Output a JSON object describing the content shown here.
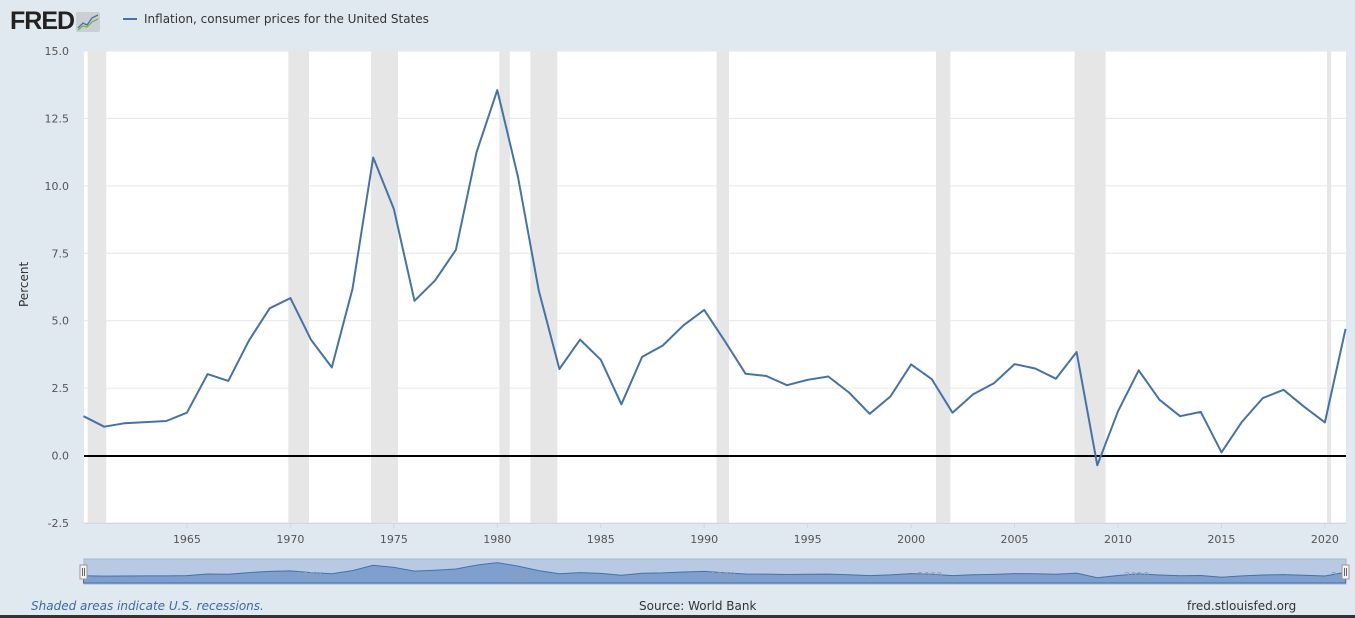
{
  "header": {
    "logo_text": "FRED",
    "legend_label": "Inflation, consumer prices for the United States"
  },
  "colors": {
    "series_line": "#4572a7",
    "recession_band": "#e6e6e6",
    "background": "#e1e9f0",
    "plot_background": "#ffffff",
    "navigator_fill": "#7f9fcf",
    "navigator_mask": "#b7c9e3",
    "footer_link": "#3a6aa3"
  },
  "footer": {
    "note": "Shaded areas indicate U.S. recessions.",
    "source": "Source: World Bank",
    "url": "fred.stlouisfed.org"
  },
  "navigator": {
    "labels": [
      "1970",
      "1980",
      "1990",
      "2000",
      "2010",
      "2..."
    ]
  },
  "chart_data": {
    "type": "line",
    "title": "Inflation, consumer prices for the United States",
    "xlabel": "",
    "ylabel": "Percent",
    "ylim": [
      -2.5,
      15.0
    ],
    "xlim": [
      1960,
      2021
    ],
    "y_ticks": [
      "15.0",
      "12.5",
      "10.0",
      "7.5",
      "5.0",
      "2.5",
      "0.0",
      "-2.5"
    ],
    "x_ticks": [
      "1965",
      "1970",
      "1975",
      "1980",
      "1985",
      "1990",
      "1995",
      "2000",
      "2005",
      "2010",
      "2015",
      "2020"
    ],
    "grid": true,
    "legend_position": "top-left",
    "recessions": [
      [
        1960.2,
        1961.1
      ],
      [
        1969.9,
        1970.9
      ],
      [
        1973.9,
        1975.2
      ],
      [
        1980.1,
        1980.6
      ],
      [
        1981.6,
        1982.9
      ],
      [
        1990.6,
        1991.2
      ],
      [
        2001.2,
        2001.9
      ],
      [
        2007.9,
        2009.4
      ],
      [
        2020.1,
        2020.3
      ]
    ],
    "series": [
      {
        "name": "Inflation, consumer prices for the United States",
        "x": [
          1960,
          1961,
          1962,
          1963,
          1964,
          1965,
          1966,
          1967,
          1968,
          1969,
          1970,
          1971,
          1972,
          1973,
          1974,
          1975,
          1976,
          1977,
          1978,
          1979,
          1980,
          1981,
          1982,
          1983,
          1984,
          1985,
          1986,
          1987,
          1988,
          1989,
          1990,
          1991,
          1992,
          1993,
          1994,
          1995,
          1996,
          1997,
          1998,
          1999,
          2000,
          2001,
          2002,
          2003,
          2004,
          2005,
          2006,
          2007,
          2008,
          2009,
          2010,
          2011,
          2012,
          2013,
          2014,
          2015,
          2016,
          2017,
          2018,
          2019,
          2020,
          2021
        ],
        "values": [
          1.46,
          1.07,
          1.2,
          1.24,
          1.28,
          1.59,
          3.02,
          2.77,
          4.27,
          5.46,
          5.84,
          4.29,
          3.27,
          6.18,
          11.05,
          9.14,
          5.74,
          6.5,
          7.63,
          11.25,
          13.55,
          10.33,
          6.13,
          3.21,
          4.3,
          3.55,
          1.9,
          3.66,
          4.08,
          4.83,
          5.4,
          4.24,
          3.03,
          2.95,
          2.61,
          2.81,
          2.93,
          2.34,
          1.55,
          2.19,
          3.38,
          2.83,
          1.59,
          2.27,
          2.68,
          3.39,
          3.23,
          2.85,
          3.84,
          -0.36,
          1.64,
          3.16,
          2.07,
          1.46,
          1.62,
          0.12,
          1.26,
          2.13,
          2.44,
          1.81,
          1.23,
          4.7
        ]
      }
    ]
  }
}
